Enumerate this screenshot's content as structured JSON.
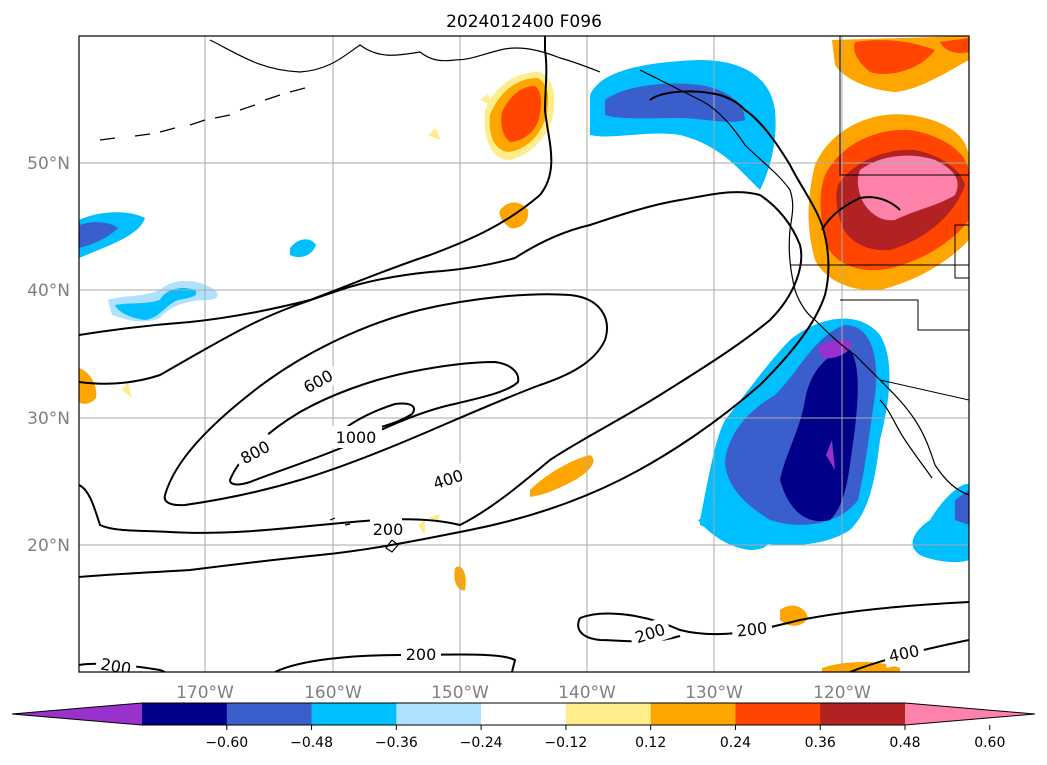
{
  "title": "2024012400 F096",
  "map": {
    "lon_ticks": [
      "170°W",
      "160°W",
      "150°W",
      "140°W",
      "130°W",
      "120°W"
    ],
    "lat_ticks": [
      "50°N",
      "40°N",
      "30°N",
      "20°N"
    ],
    "contour_labels": [
      "600",
      "800",
      "1000",
      "400",
      "200",
      "200",
      "200",
      "200",
      "200",
      "400"
    ],
    "contour_levels": [
      200,
      400,
      600,
      800,
      1000
    ]
  },
  "colorbar": {
    "colors": [
      "#9932CC",
      "#00008B",
      "#3A5FCD",
      "#00BFFF",
      "#B0E2FF",
      "#FFFFFF",
      "#FFEC8B",
      "#FFA500",
      "#FF4500",
      "#B22222",
      "#FF82AB"
    ],
    "tick_labels": [
      "−0.60",
      "−0.48",
      "−0.36",
      "−0.24",
      "−0.12",
      "0.12",
      "0.24",
      "0.36",
      "0.48",
      "0.60"
    ]
  }
}
